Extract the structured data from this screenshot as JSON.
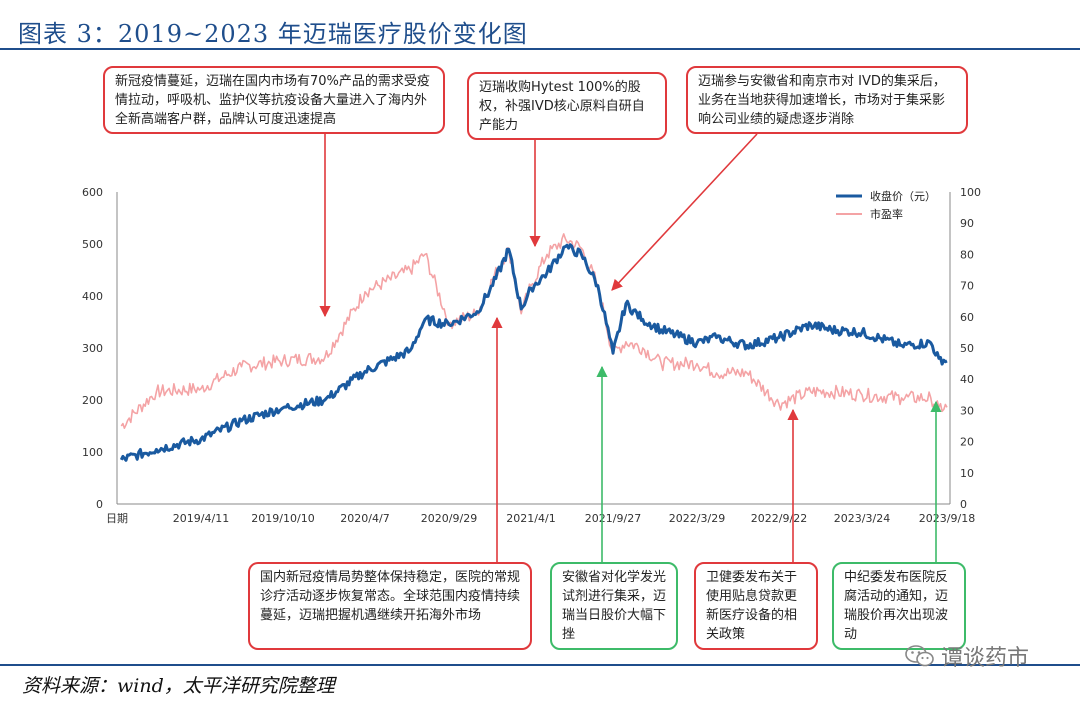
{
  "header": {
    "title": "图表 3：2019~2023 年迈瑞医疗股价变化图"
  },
  "footer": {
    "source": "资料来源：wind，太平洋研究院整理",
    "watermark": "谭谈药市"
  },
  "callouts": [
    {
      "text": "新冠疫情蔓延，迈瑞在国内市场有70%产品的需求受疫情拉动，呼吸机、监护仪等抗疫设备大量进入了海内外全新高端客户群，品牌认可度迅速提高",
      "color": "#e0393c"
    },
    {
      "text": "迈瑞收购Hytest 100%的股权，补强IVD核心原料自研自产能力",
      "color": "#e0393c"
    },
    {
      "text": "迈瑞参与安徽省和南京市对 IVD的集采后，业务在当地获得加速增长，市场对于集采影响公司业绩的疑虑逐步消除",
      "color": "#e0393c"
    },
    {
      "text": "国内新冠疫情局势整体保持稳定，医院的常规诊疗活动逐步恢复常态。全球范围内疫情持续蔓延，迈瑞把握机遇继续开拓海外市场",
      "color": "#e0393c"
    },
    {
      "text": "安徽省对化学发光试剂进行集采，迈瑞当日股价大幅下挫",
      "color": "#3dbb69"
    },
    {
      "text": "卫健委发布关于使用贴息贷款更新医疗设备的相关政策",
      "color": "#e0393c"
    },
    {
      "text": "中纪委发布医院反腐活动的通知，迈瑞股价再次出现波动",
      "color": "#3dbb69"
    }
  ],
  "chart_data": {
    "type": "line",
    "xlabel": "日期",
    "x_ticks": [
      "2019/4/11",
      "2019/10/10",
      "2020/4/7",
      "2020/9/29",
      "2021/4/1",
      "2021/9/27",
      "2022/3/29",
      "2022/9/22",
      "2023/3/24",
      "2023/9/18"
    ],
    "y_left": {
      "ticks": [
        0,
        100,
        200,
        300,
        400,
        500,
        600
      ],
      "range": [
        0,
        600
      ]
    },
    "y_right": {
      "ticks": [
        0,
        10,
        20,
        30,
        40,
        50,
        60,
        70,
        80,
        90,
        100
      ],
      "range": [
        0,
        100
      ]
    },
    "colors": {
      "price": "#1a5aa0",
      "pe": "#f4a3a5"
    },
    "legend_position": "top-right",
    "series": [
      {
        "name": "收盘价（元）",
        "axis": "left",
        "x": [
          "2018/10/16",
          "2019/1/2",
          "2019/4/11",
          "2019/7/10",
          "2019/10/10",
          "2020/1/10",
          "2020/4/7",
          "2020/7/10",
          "2020/8/10",
          "2020/9/29",
          "2020/12/1",
          "2021/1/5",
          "2021/2/10",
          "2021/3/10",
          "2021/4/1",
          "2021/5/6",
          "2021/6/15",
          "2021/7/20",
          "2021/8/25",
          "2021/9/27",
          "2021/10/25",
          "2021/12/1",
          "2022/1/10",
          "2022/3/29",
          "2022/5/10",
          "2022/7/15",
          "2022/9/22",
          "2022/12/1",
          "2023/1/15",
          "2023/3/24",
          "2023/6/15",
          "2023/8/15",
          "2023/9/1",
          "2023/9/18"
        ],
        "y": [
          85,
          105,
          125,
          160,
          185,
          200,
          255,
          295,
          355,
          345,
          370,
          420,
          490,
          375,
          415,
          445,
          495,
          480,
          420,
          290,
          385,
          355,
          335,
          310,
          320,
          305,
          320,
          345,
          335,
          330,
          305,
          310,
          280,
          275
        ]
      },
      {
        "name": "市盈率",
        "axis": "right",
        "x": [
          "2018/10/16",
          "2019/1/2",
          "2019/4/11",
          "2019/7/10",
          "2019/10/10",
          "2020/1/10",
          "2020/4/7",
          "2020/7/10",
          "2020/8/10",
          "2020/9/29",
          "2020/12/1",
          "2021/1/5",
          "2021/2/10",
          "2021/3/10",
          "2021/4/1",
          "2021/5/6",
          "2021/6/15",
          "2021/7/20",
          "2021/8/25",
          "2021/9/27",
          "2021/10/25",
          "2021/12/1",
          "2022/1/10",
          "2022/3/29",
          "2022/5/10",
          "2022/7/15",
          "2022/9/22",
          "2022/12/1",
          "2023/1/15",
          "2023/3/24",
          "2023/6/15",
          "2023/8/15",
          "2023/9/1",
          "2023/9/18"
        ],
        "y": [
          25,
          36,
          37,
          44,
          46,
          47,
          68,
          75,
          80,
          58,
          61,
          72,
          82,
          61,
          70,
          80,
          85,
          82,
          70,
          48,
          52,
          50,
          45,
          45,
          42,
          42,
          32,
          36,
          36,
          35,
          34,
          34,
          31,
          31
        ]
      }
    ]
  }
}
